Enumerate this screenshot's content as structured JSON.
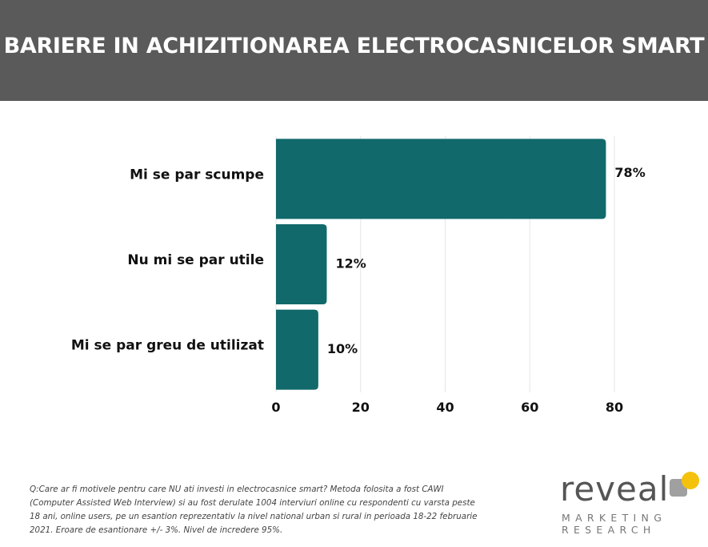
{
  "title": "BARIERE IN ACHIZITIONAREA ELECTROCASNICELOR SMART",
  "chart_data": {
    "type": "bar",
    "orientation": "horizontal",
    "categories": [
      "Mi se par scumpe",
      "Nu mi se par utile",
      "Mi se par greu de utilizat"
    ],
    "values": [
      78,
      12,
      10
    ],
    "value_labels": [
      "78%",
      "12%",
      "10%"
    ],
    "xlim": [
      0,
      80
    ],
    "xticks": [
      0,
      20,
      40,
      60,
      80
    ],
    "xtick_labels": [
      "0",
      "20",
      "40",
      "60",
      "80"
    ],
    "grid": true,
    "bar_color": "#11696b",
    "grid_color": "#e6e6e6"
  },
  "footnote": "Q:Care ar fi motivele pentru care NU ati investi in electrocasnice smart? Metoda folosita a fost CAWI (Computer Assisted Web Interview) si au fost derulate 1004 interviuri online cu respondenti cu varsta peste 18 ani, online users, pe un esantion reprezentativ la nivel national urban si rural in perioada 18-22 februarie 2021. Eroare de esantionare +/- 3%. Nivel de incredere 95%.",
  "logo": {
    "wordmark": "reveal",
    "subline1": "MARKETING",
    "subline2": "RESEARCH",
    "accent_color": "#f4c20d",
    "gray_color": "#a0a0a0"
  }
}
